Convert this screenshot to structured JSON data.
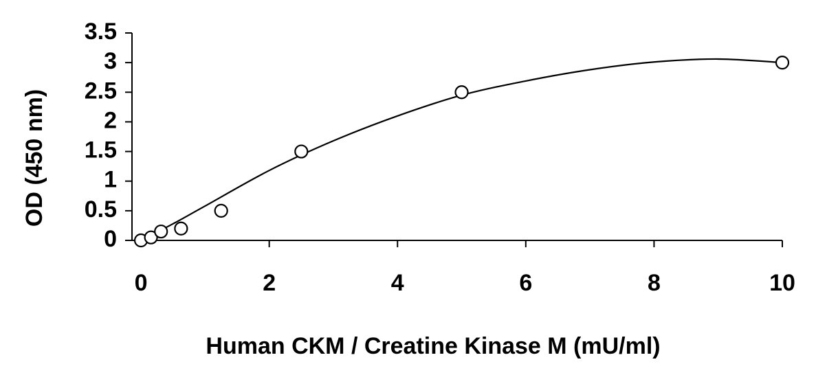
{
  "chart_data": {
    "type": "scatter",
    "x_label": "Human CKM / Creatine Kinase M (mU/ml)",
    "y_label": "OD (450 nm)",
    "x": [
      0,
      0.156,
      0.3125,
      0.625,
      1.25,
      2.5,
      5,
      10
    ],
    "values": [
      0,
      0.05,
      0.15,
      0.2,
      0.5,
      1.5,
      2.5,
      3.0
    ],
    "fit": {
      "x": [
        0,
        0.5,
        1,
        2,
        3,
        4,
        5,
        6,
        7,
        8,
        9,
        10
      ],
      "values": [
        0,
        0.28,
        0.58,
        1.18,
        1.68,
        2.1,
        2.45,
        2.69,
        2.88,
        3.01,
        3.06,
        3.0
      ]
    },
    "color": "#000000",
    "xlim": [
      -0.14,
      10
    ],
    "xticks": [
      0,
      2,
      4,
      6,
      8,
      10
    ],
    "ylim": [
      0,
      3.5
    ],
    "yticks": [
      0,
      0.5,
      1,
      1.5,
      2,
      2.5,
      3,
      3.5
    ]
  }
}
